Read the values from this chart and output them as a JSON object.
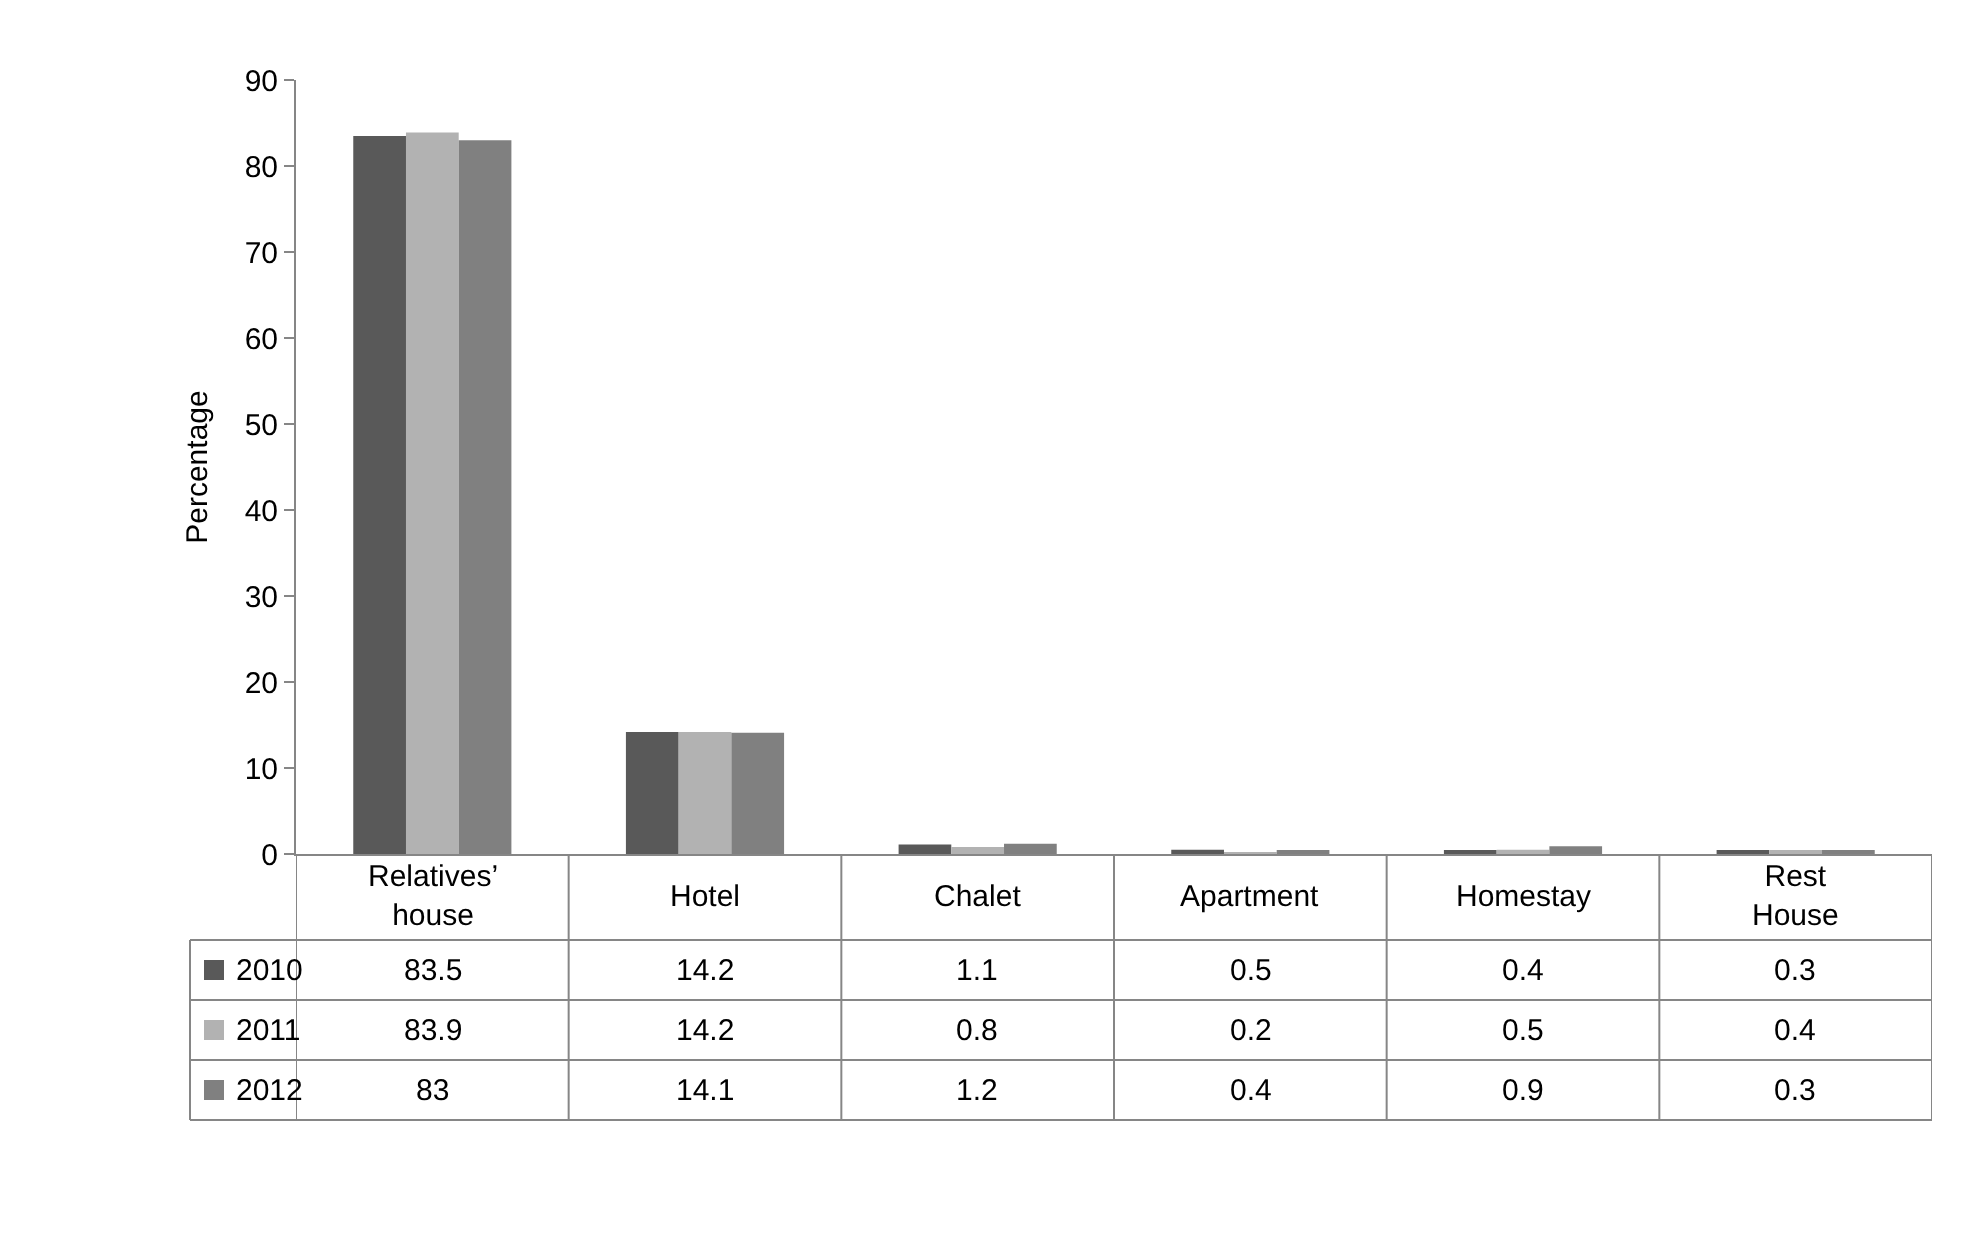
{
  "chart_data": {
    "type": "bar",
    "ylabel": "Percentage",
    "categories": [
      "Relatives’ house",
      "Hotel",
      "Chalet",
      "Apartment",
      "Homestay",
      "Rest House"
    ],
    "series": [
      {
        "name": "2010",
        "color": "#595959",
        "values": [
          83.5,
          14.2,
          1.1,
          0.5,
          0.4,
          0.3
        ]
      },
      {
        "name": "2011",
        "color": "#b2b2b2",
        "values": [
          83.9,
          14.2,
          0.8,
          0.2,
          0.5,
          0.4
        ]
      },
      {
        "name": "2012",
        "color": "#808080",
        "values": [
          83,
          14.1,
          1.2,
          0.4,
          0.9,
          0.3
        ]
      }
    ],
    "ylim": [
      0,
      90
    ],
    "yticks": [
      0,
      10,
      20,
      30,
      40,
      50,
      60,
      70,
      80,
      90
    ],
    "data_labels": true,
    "legend": "bottom"
  }
}
